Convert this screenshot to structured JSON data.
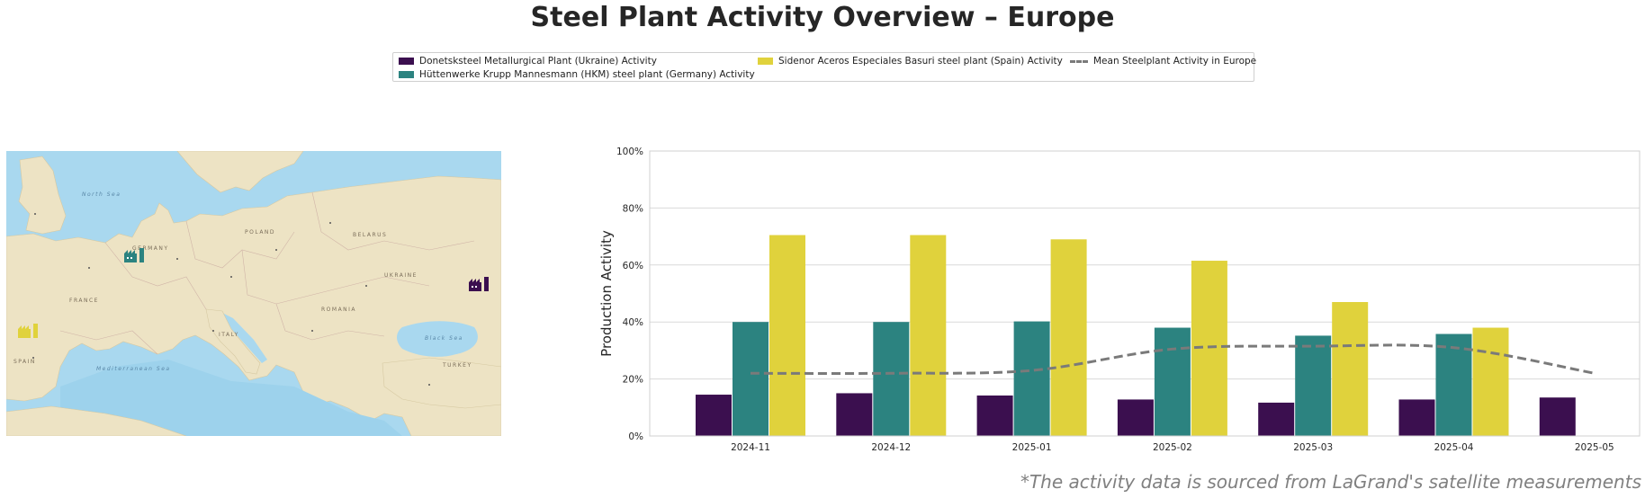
{
  "title": "Steel Plant Activity Overview – Europe",
  "footnote": "*The activity data is sourced from LaGrand's satellite measurements",
  "legend": {
    "items": [
      {
        "label": "Donetsksteel Metallurgical Plant (Ukraine) Activity",
        "color": "#3b0f4f"
      },
      {
        "label": "Hüttenwerke Krupp Mannesmann (HKM) steel plant (Germany) Activity",
        "color": "#2c8380"
      },
      {
        "label": "Sidenor Aceros Especiales Basuri steel plant (Spain) Activity",
        "color": "#e0d23c"
      },
      {
        "label": "Mean Steelplant Activity in Europe",
        "color": "#7a7a7a"
      }
    ]
  },
  "map": {
    "labels": {
      "north_sea": "North Sea",
      "france": "FRANCE",
      "ukraine": "UKRAINE",
      "turkey": "TURKEY",
      "germany": "GERMANY",
      "poland": "POLAND",
      "belarus": "BELARUS",
      "romania": "ROMANIA",
      "italy": "ITALY",
      "spain": "SPAIN",
      "mediterranean": "Mediterranean Sea",
      "black_sea": "Black Sea"
    },
    "markers": [
      {
        "name": "Donetsksteel",
        "color": "#3b0f4f",
        "icon": "factory-icon"
      },
      {
        "name": "HKM",
        "color": "#2c8380",
        "icon": "factory-icon"
      },
      {
        "name": "Sidenor",
        "color": "#e0d23c",
        "icon": "factory-icon"
      }
    ]
  },
  "chart_data": {
    "type": "bar",
    "categories": [
      "2024-11",
      "2024-12",
      "2025-01",
      "2025-02",
      "2025-03",
      "2025-04",
      "2025-05"
    ],
    "series": [
      {
        "name": "Donetsksteel Metallurgical Plant (Ukraine) Activity",
        "color": "#3b0f4f",
        "values": [
          14.5,
          15,
          14.2,
          12.8,
          11.7,
          12.8,
          13.5
        ]
      },
      {
        "name": "Hüttenwerke Krupp Mannesmann (HKM) steel plant (Germany) Activity",
        "color": "#2c8380",
        "values": [
          40,
          40,
          40.2,
          38,
          35.2,
          35.8,
          null
        ]
      },
      {
        "name": "Sidenor Aceros Especiales Basuri steel plant (Spain) Activity",
        "color": "#e0d23c",
        "values": [
          70.5,
          70.5,
          69,
          61.5,
          47,
          38,
          null
        ]
      }
    ],
    "mean_line": {
      "name": "Mean Steelplant Activity in Europe",
      "color": "#7a7a7a",
      "style": "dashed",
      "values": [
        22,
        22,
        23,
        30.5,
        31.5,
        31,
        22
      ]
    },
    "ylabel": "Production Activity",
    "xlabel": "",
    "ylim": [
      0,
      100
    ],
    "yticks": [
      "0%",
      "20%",
      "40%",
      "60%",
      "80%",
      "100%"
    ],
    "grid": true
  }
}
